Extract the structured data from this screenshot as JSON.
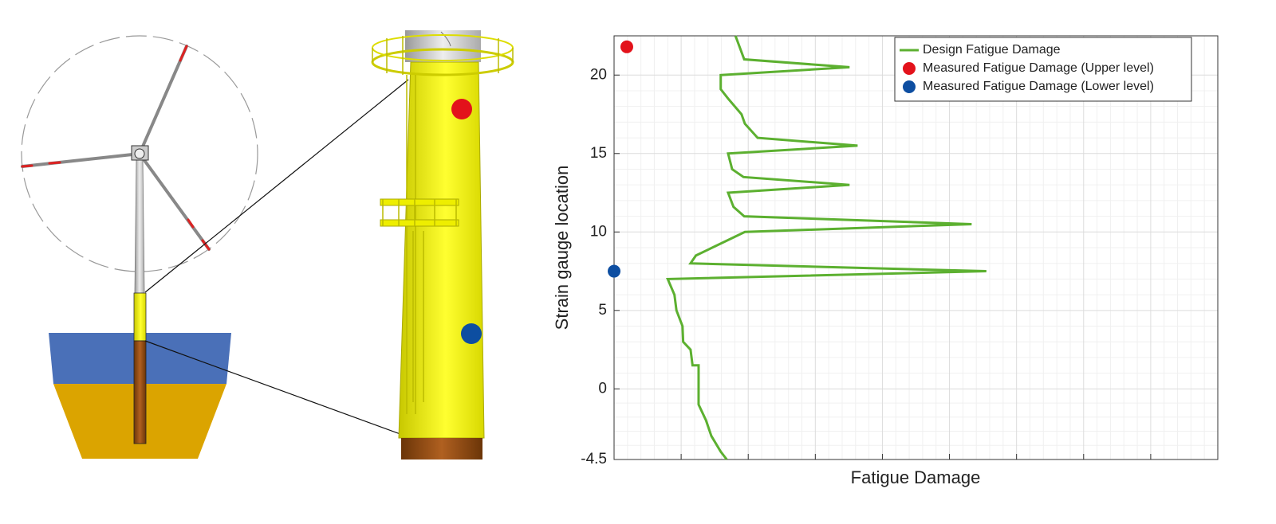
{
  "chart_data": {
    "type": "line",
    "x_label": "Fatigue Damage",
    "y_label": "Strain gauge location",
    "xlim": [
      0,
      9
    ],
    "xticks": [
      0,
      1,
      2,
      3,
      4,
      5,
      6,
      7,
      8,
      9
    ],
    "x_tick_labels": false,
    "ylim": [
      -4.5,
      22.5
    ],
    "yticks": [
      -4.5,
      0,
      5,
      10,
      15,
      20
    ],
    "grid": true,
    "minor_grid": true,
    "legend": "upper right",
    "series": [
      {
        "name": "Design Fatigue Damage",
        "type": "line",
        "color": "#5cb030",
        "x": [
          1.81,
          1.94,
          3.51,
          1.59,
          1.59,
          1.7,
          1.9,
          1.95,
          2.14,
          3.63,
          1.7,
          1.76,
          1.93,
          3.51,
          1.7,
          1.78,
          1.94,
          5.33,
          1.95,
          1.22,
          1.14,
          5.55,
          0.8,
          0.9,
          0.93,
          1.02,
          1.03,
          1.14,
          1.17,
          1.26,
          1.26,
          1.37,
          1.45,
          1.59,
          1.68
        ],
        "values": [
          22.5,
          21,
          20.5,
          20,
          19.1,
          18.5,
          17.5,
          16.9,
          16,
          15.5,
          15,
          14,
          13.5,
          13,
          12.5,
          11.6,
          11,
          10.5,
          10,
          8.5,
          8,
          7.5,
          7,
          6,
          5,
          4,
          3,
          2.5,
          1.5,
          1.5,
          -1,
          -2,
          -3,
          -4,
          -4.5
        ]
      },
      {
        "name": "Measured Fatigue Damage (Upper level)",
        "type": "scatter",
        "color": "#e3121b",
        "x": [
          0.19
        ],
        "values": [
          21.8
        ]
      },
      {
        "name": "Measured Fatigue Damage (Lower level)",
        "type": "scatter",
        "color": "#0d4ea1",
        "x": [
          0
        ],
        "values": [
          7.5
        ]
      }
    ]
  }
}
